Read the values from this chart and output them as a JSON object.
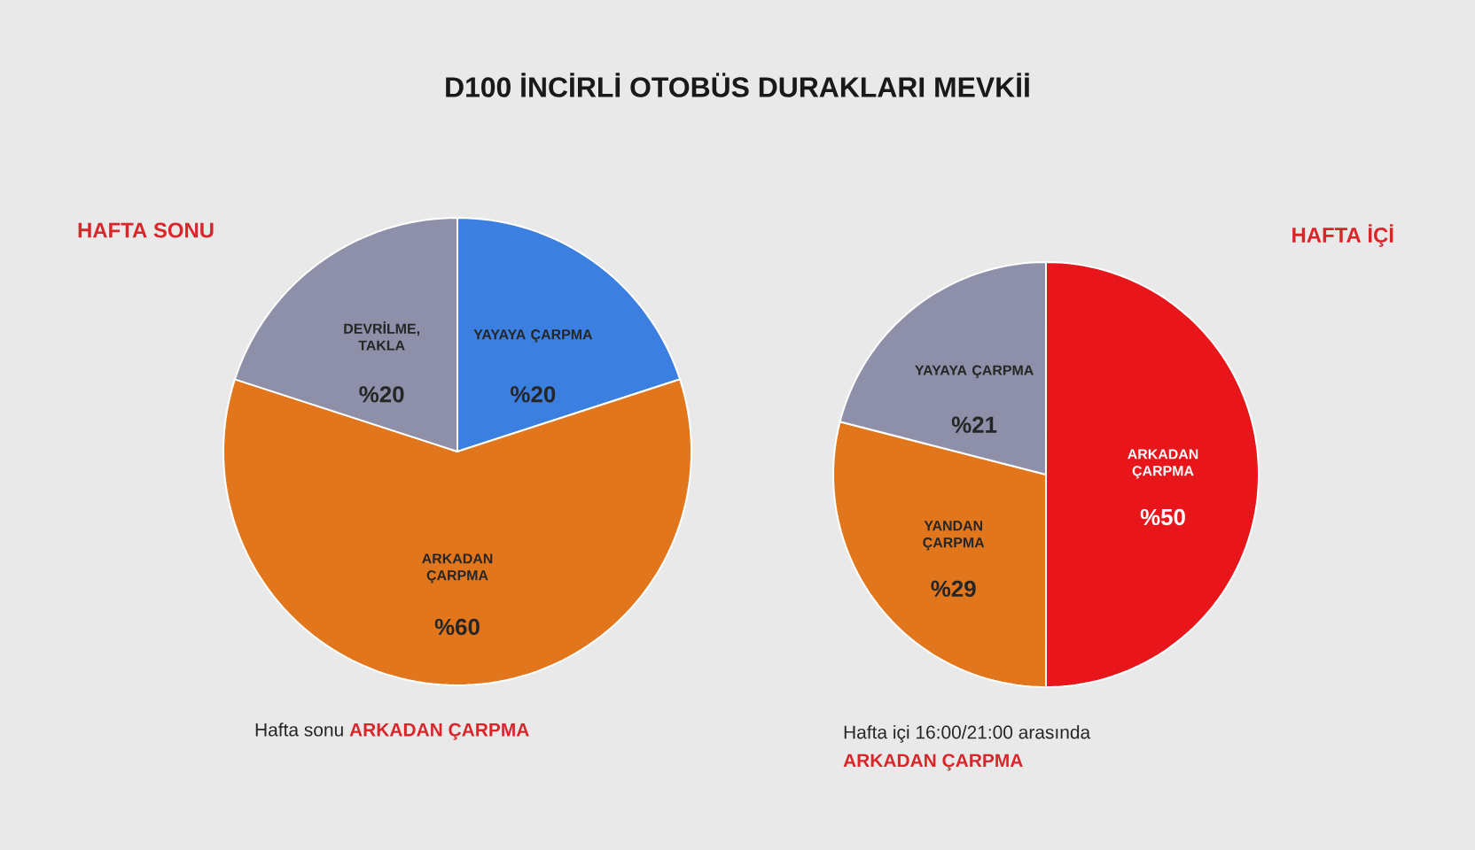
{
  "chart_data": [
    {
      "type": "pie",
      "title": "D100 İNCİRLİ OTOBÜS DURAKLARI MEVKİİ",
      "subtitle": "HAFTA SONU",
      "categories": [
        "YAYAYA ÇARPMA",
        "ARKADAN ÇARPMA",
        "DEVRİLME, TAKLA"
      ],
      "values": [
        20,
        60,
        20
      ],
      "value_labels": [
        "%20",
        "%60",
        "%20"
      ],
      "colors": [
        "#3b7fe0",
        "#e2761c",
        "#8e8fa8"
      ],
      "annotations": [
        "Hafta sonu",
        "ARKADAN ÇARPMA"
      ]
    },
    {
      "type": "pie",
      "subtitle": "HAFTA İÇİ",
      "categories": [
        "ARKADAN ÇARPMA",
        "YANDAN ÇARPMA",
        "YAYAYA ÇARPMA"
      ],
      "values": [
        50,
        29,
        21
      ],
      "value_labels": [
        "%50",
        "%29",
        "%21"
      ],
      "colors": [
        "#e8161b",
        "#e2761c",
        "#8e8fa8"
      ],
      "annotations": [
        "Hafta içi 16:00/21:00 arasında",
        "ARKADAN ÇARPMA"
      ]
    }
  ]
}
